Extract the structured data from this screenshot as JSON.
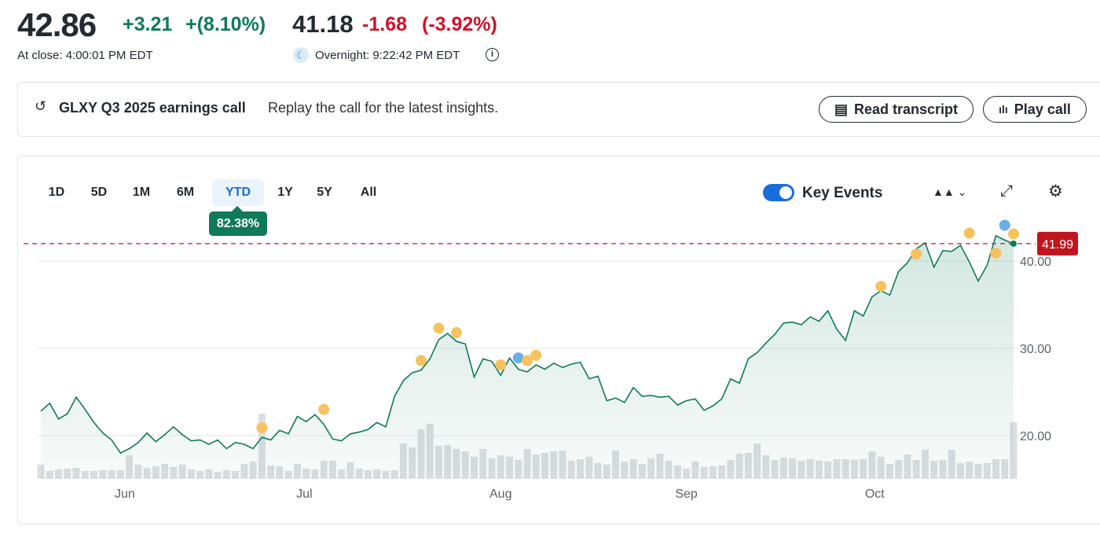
{
  "quote": {
    "price": "42.86",
    "change": "+3.21",
    "change_pct": "+(8.10%)",
    "close_time": "At close: 4:00:01 PM EDT",
    "overnight_price": "41.18",
    "overnight_change": "-1.68",
    "overnight_pct": "(-3.92%)",
    "overnight_time": "Overnight: 9:22:42 PM EDT"
  },
  "banner": {
    "title": "GLXY Q3 2025 earnings call",
    "subtitle": "Replay the call for the latest insights.",
    "read_transcript": "Read transcript",
    "play_call": "Play call"
  },
  "range_tabs": [
    "1D",
    "5D",
    "1M",
    "6M",
    "YTD",
    "1Y",
    "5Y",
    "All"
  ],
  "active_tab": "YTD",
  "ytd_badge": "82.38%",
  "key_events": {
    "label": "Key Events",
    "enabled": true
  },
  "colors": {
    "up": "#0f7a5a",
    "down": "#d0112b",
    "accent": "#1a6cd9",
    "event_orange": "#f6c25e",
    "event_blue": "#6aaee6"
  },
  "chart_data": {
    "type": "line",
    "title": "",
    "ylim": [
      15,
      45
    ],
    "y_ticks": [
      "20.00",
      "30.00",
      "40.00"
    ],
    "y_tick_values": [
      20,
      30,
      40
    ],
    "current_price_label": "41.99",
    "current_price": 41.99,
    "x_labels": [
      {
        "label": "Jun",
        "index": 9.5
      },
      {
        "label": "Jul",
        "index": 29.8
      },
      {
        "label": "Aug",
        "index": 52
      },
      {
        "label": "Sep",
        "index": 73
      },
      {
        "label": "Oct",
        "index": 94.3
      }
    ],
    "prices": [
      22.8,
      23.7,
      21.9,
      22.5,
      24.4,
      23,
      21.5,
      20.3,
      19.5,
      18,
      18.5,
      19.2,
      20.3,
      19.3,
      20.1,
      21,
      20.1,
      19.4,
      19.5,
      19,
      19.5,
      18.5,
      19.2,
      19,
      18.5,
      19.8,
      19.5,
      20.6,
      20.2,
      22.2,
      21.6,
      22.4,
      21.3,
      19.6,
      19.4,
      20.2,
      20.4,
      20.7,
      21.5,
      21,
      24.5,
      26.3,
      27.2,
      27.5,
      28.8,
      31,
      31.7,
      30.8,
      30.5,
      26.7,
      28.8,
      28.5,
      26.9,
      28.9,
      27.6,
      27.3,
      28.1,
      27.6,
      28.3,
      27.8,
      28.2,
      28.4,
      26.5,
      26.8,
      24,
      24.3,
      23.8,
      25.5,
      24.5,
      24.6,
      24.4,
      24.5,
      23.5,
      24,
      24.2,
      22.9,
      23.4,
      24.2,
      26.5,
      26,
      28.8,
      29.5,
      30.6,
      31.6,
      32.9,
      33,
      32.7,
      33.6,
      33.1,
      34.3,
      32.2,
      30.9,
      34.3,
      33.7,
      35.9,
      36.6,
      36.1,
      38.8,
      39.8,
      41.4,
      42.1,
      39.3,
      41.2,
      41.1,
      41.8,
      39.9,
      37.7,
      39.5,
      42.9,
      42.4,
      41.99
    ],
    "volumes": [
      1.8,
      1.0,
      1.2,
      1.3,
      1.4,
      1.0,
      1.0,
      1.1,
      1.1,
      1.1,
      3.0,
      1.8,
      1.4,
      1.6,
      1.9,
      1.5,
      1.8,
      1.2,
      1.0,
      1.2,
      0.9,
      1.1,
      1.0,
      1.9,
      2.2,
      8.3,
      1.7,
      1.6,
      1.0,
      1.9,
      1.3,
      1.2,
      2.3,
      2.3,
      1.2,
      2.1,
      1.3,
      1.1,
      1.2,
      1.0,
      1.1,
      4.5,
      4.0,
      6.3,
      7.0,
      4.2,
      4.3,
      3.8,
      3.5,
      2.8,
      3.8,
      2.6,
      3.0,
      2.8,
      2.4,
      3.8,
      3.1,
      3.3,
      3.5,
      3.6,
      2.3,
      2.5,
      2.8,
      2.0,
      1.8,
      3.6,
      2.2,
      2.5,
      1.9,
      2.6,
      3.2,
      2.3,
      1.7,
      1.3,
      2.2,
      1.5,
      1.6,
      1.7,
      2.4,
      3.2,
      3.3,
      4.5,
      3.0,
      2.4,
      2.7,
      2.6,
      2.3,
      2.5,
      2.3,
      2.2,
      2.5,
      2.5,
      2.4,
      2.5,
      3.5,
      2.8,
      1.9,
      2.4,
      3.1,
      2.4,
      3.7,
      2.3,
      2.4,
      3.7,
      2.0,
      2.2,
      1.9,
      2.0,
      2.5,
      2.5,
      7.2
    ],
    "events": [
      {
        "index": 25,
        "price": 20.9,
        "type": "orange"
      },
      {
        "index": 32,
        "price": 23,
        "type": "orange"
      },
      {
        "index": 43,
        "price": 28.6,
        "type": "orange"
      },
      {
        "index": 45,
        "price": 32.3,
        "type": "orange"
      },
      {
        "index": 47,
        "price": 31.8,
        "type": "orange"
      },
      {
        "index": 52,
        "price": 28.1,
        "type": "orange"
      },
      {
        "index": 54,
        "price": 28.9,
        "type": "blue"
      },
      {
        "index": 55,
        "price": 28.6,
        "type": "orange"
      },
      {
        "index": 56,
        "price": 29.2,
        "type": "orange"
      },
      {
        "index": 95,
        "price": 37.1,
        "type": "orange"
      },
      {
        "index": 99,
        "price": 40.8,
        "type": "orange"
      },
      {
        "index": 105,
        "price": 43.2,
        "type": "orange"
      },
      {
        "index": 108,
        "price": 40.9,
        "type": "orange"
      },
      {
        "index": 109,
        "price": 44.1,
        "type": "blue"
      },
      {
        "index": 110,
        "price": 43.1,
        "type": "orange"
      }
    ]
  }
}
